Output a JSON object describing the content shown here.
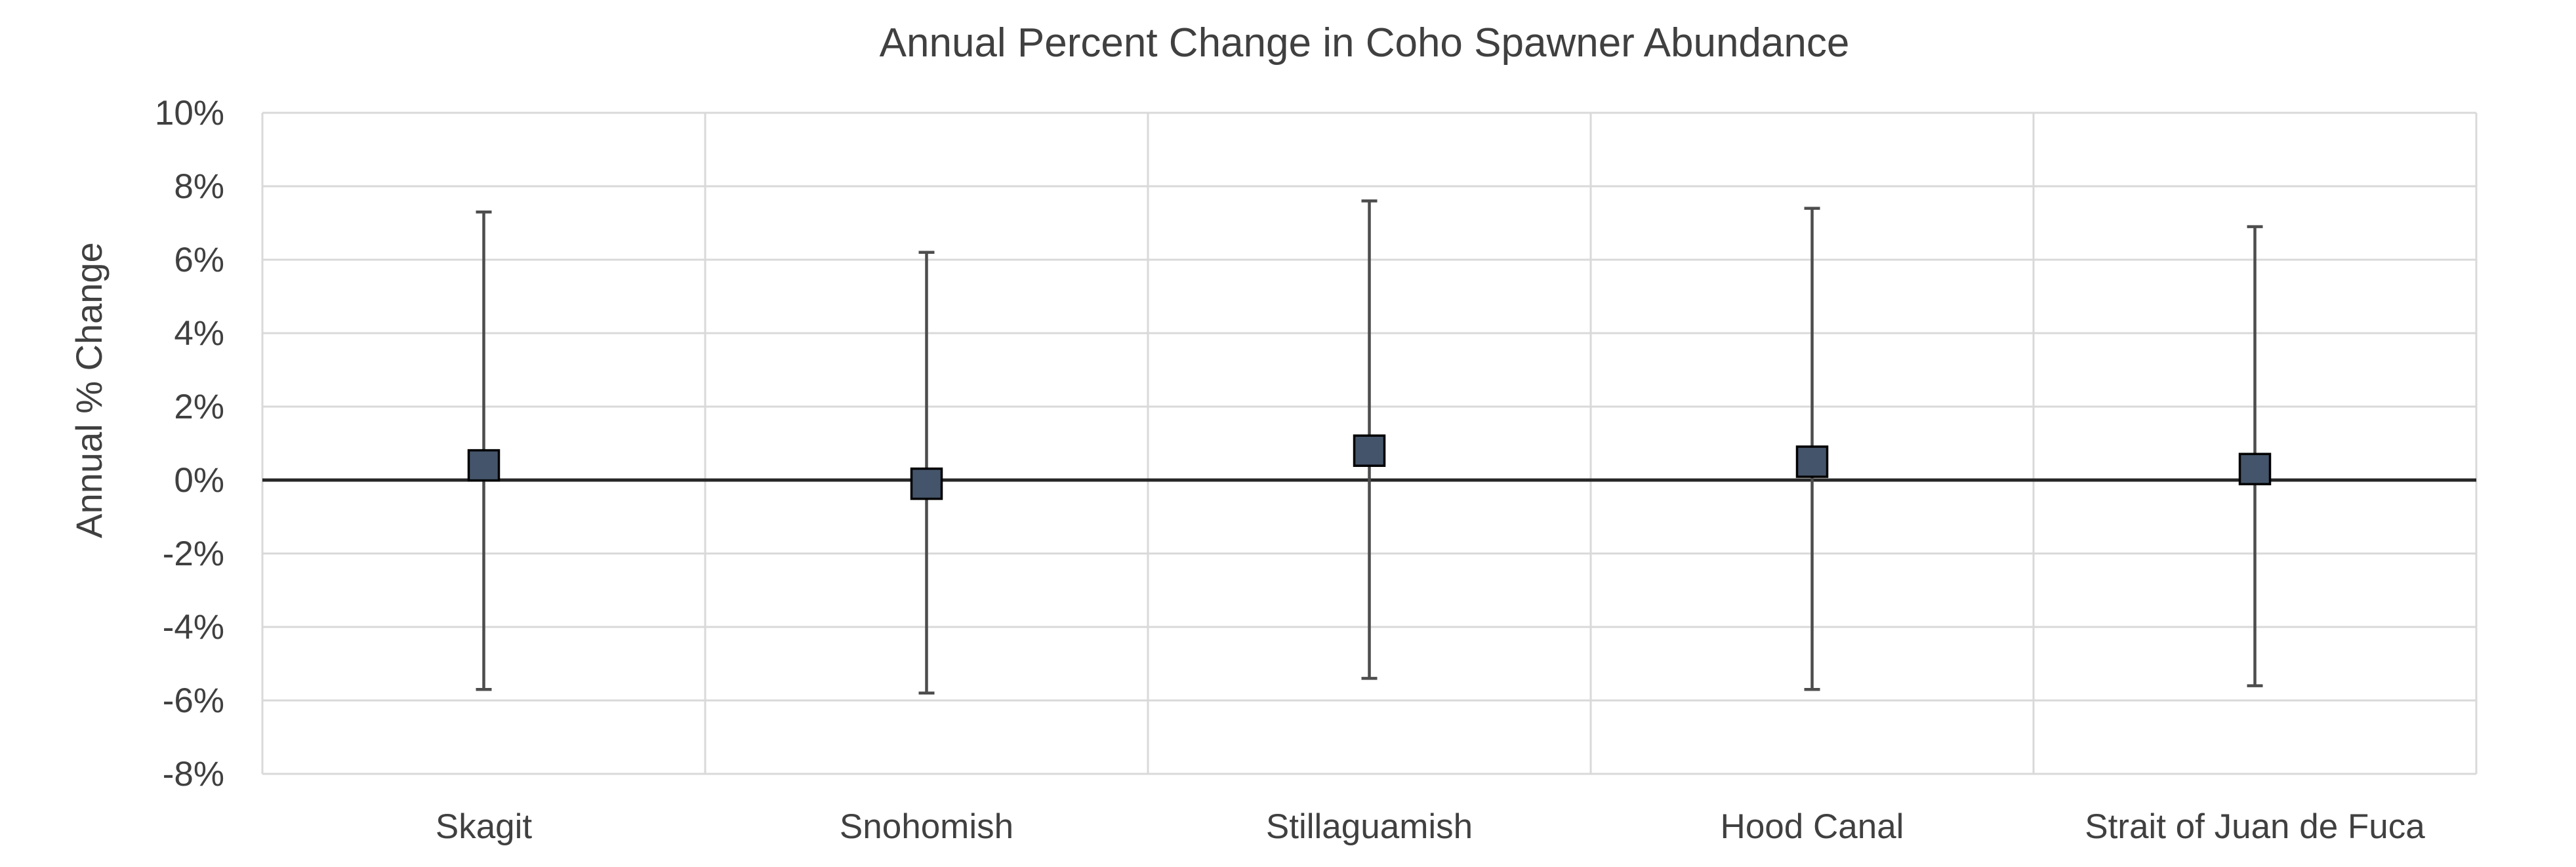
{
  "chart_data": {
    "type": "scatter",
    "title": "Annual Percent Change in Coho Spawner Abundance",
    "xlabel": "",
    "ylabel": "Annual % Change",
    "categories": [
      "Skagit",
      "Snohomish",
      "Stillaguamish",
      "Hood Canal",
      "Strait of Juan de Fuca"
    ],
    "values": [
      0.4,
      -0.1,
      0.8,
      0.5,
      0.3
    ],
    "error_low": [
      -5.7,
      -5.8,
      -5.4,
      -5.7,
      -5.6
    ],
    "error_high": [
      7.3,
      6.2,
      7.6,
      7.4,
      6.9
    ],
    "ylim": [
      -8,
      10
    ],
    "y_ticks": [
      10,
      8,
      6,
      4,
      2,
      0,
      -2,
      -4,
      -6,
      -8
    ],
    "y_tick_labels": [
      "10%",
      "8%",
      "6%",
      "4%",
      "2%",
      "0%",
      "-2%",
      "-4%",
      "-6%",
      "-8%"
    ],
    "grid": true,
    "legend": "none",
    "colors": {
      "marker": "#44546a",
      "error_bar": "#4d4d4d",
      "zero_line": "#262626",
      "grid": "#d9d9d9"
    }
  }
}
